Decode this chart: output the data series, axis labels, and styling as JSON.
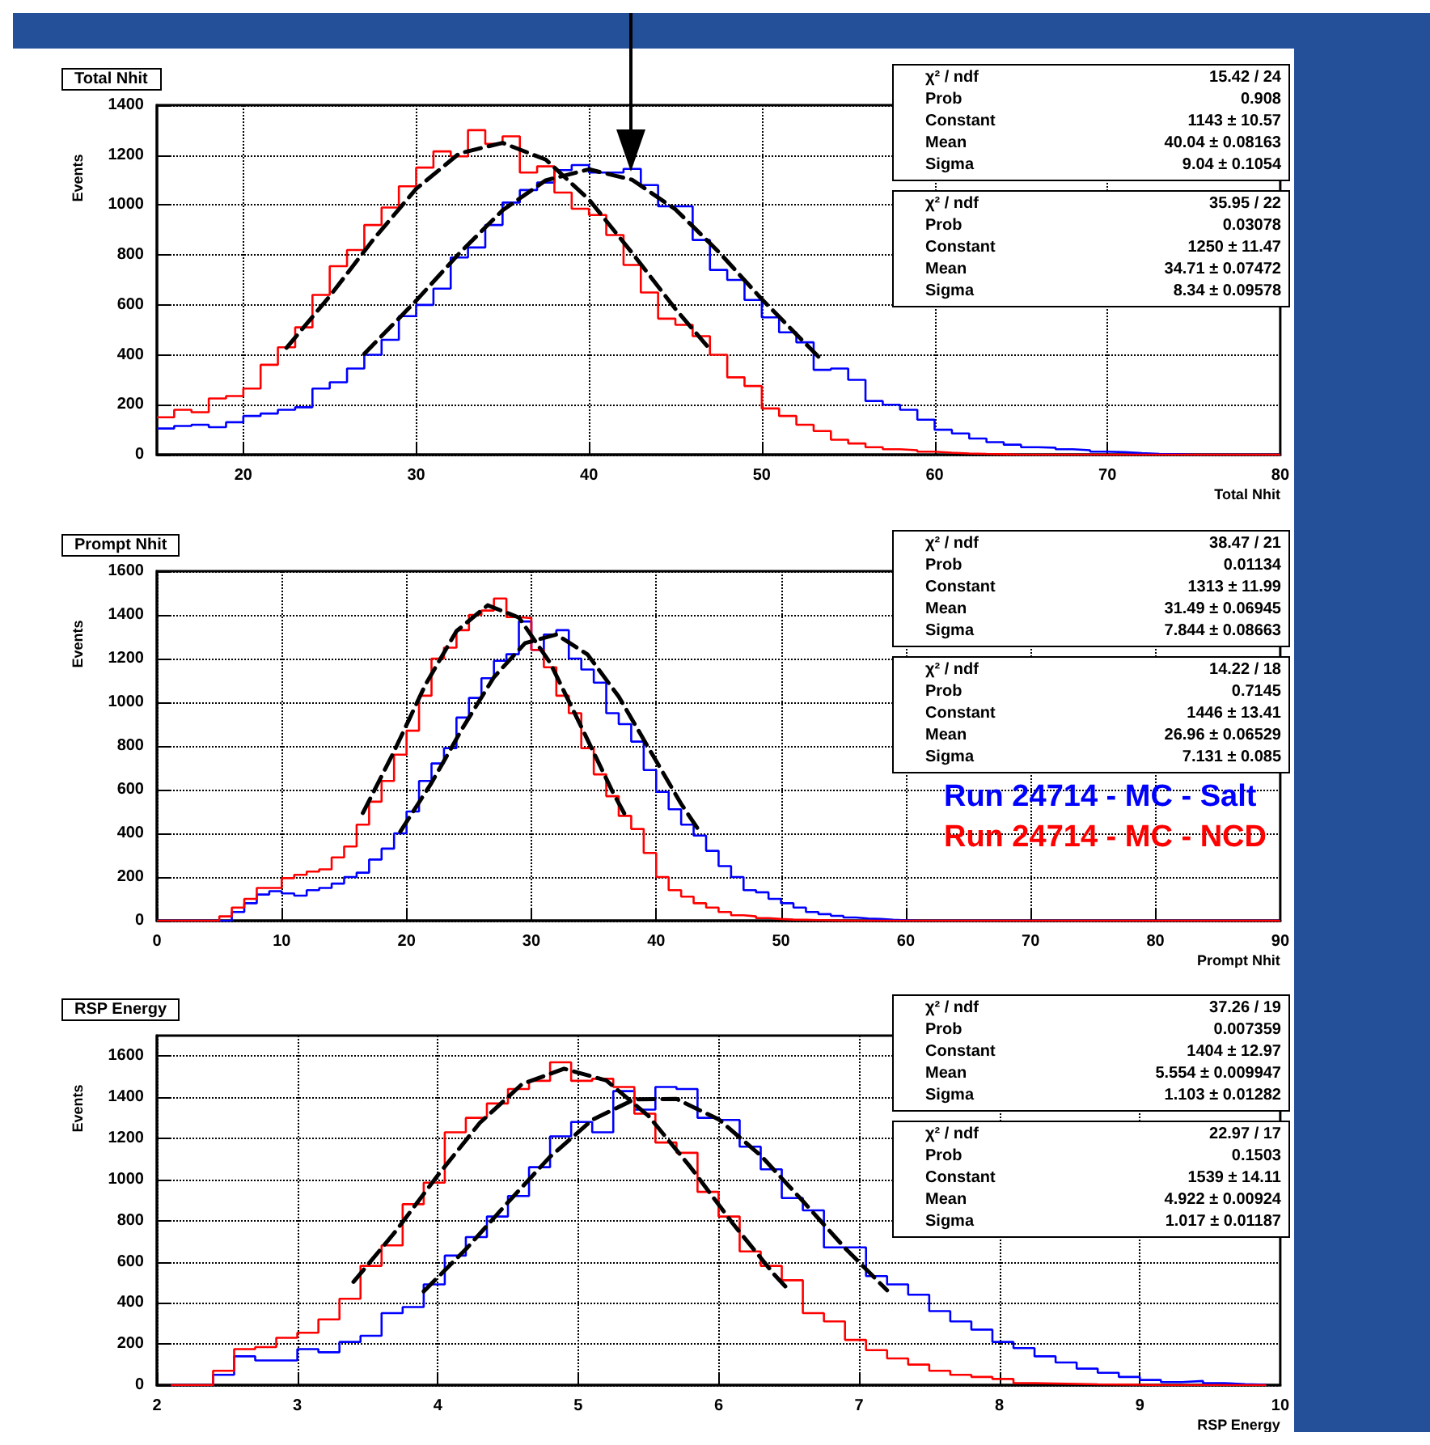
{
  "chart_data": [
    {
      "type": "histogram",
      "title": "Total Nhit",
      "xlabel": "Total Nhit",
      "ylabel": "Events",
      "grid": true,
      "xlim": [
        15,
        80
      ],
      "ylim": [
        0,
        1400
      ],
      "xticks": [
        20,
        30,
        40,
        50,
        60,
        70,
        80
      ],
      "yticks": [
        0,
        200,
        400,
        600,
        800,
        1000,
        1200,
        1400
      ],
      "bins": [
        15,
        16,
        17,
        18,
        19,
        20,
        21,
        22,
        23,
        24,
        25,
        26,
        27,
        28,
        29,
        30,
        31,
        32,
        33,
        34,
        35,
        36,
        37,
        38,
        39,
        40,
        41,
        42,
        43,
        44,
        45,
        46,
        47,
        48,
        49,
        50,
        51,
        52,
        53,
        54,
        55,
        56,
        57,
        58,
        59,
        60,
        61,
        62,
        63,
        64,
        65,
        66,
        67,
        68,
        69,
        70,
        71,
        72,
        73,
        74,
        75,
        76,
        77,
        78,
        79,
        80
      ],
      "series": [
        {
          "color": "#0000ff",
          "values": [
            105,
            115,
            120,
            110,
            130,
            155,
            165,
            180,
            190,
            265,
            290,
            345,
            400,
            460,
            555,
            600,
            665,
            790,
            830,
            920,
            1010,
            1060,
            1090,
            1140,
            1160,
            1130,
            1130,
            1145,
            1080,
            995,
            995,
            860,
            740,
            700,
            620,
            550,
            490,
            450,
            340,
            345,
            300,
            215,
            200,
            180,
            140,
            100,
            85,
            65,
            50,
            40,
            30,
            28,
            22,
            18,
            12,
            10,
            6,
            3,
            2,
            0,
            0,
            0,
            0,
            0,
            0
          ]
        },
        {
          "color": "#ff0000",
          "values": [
            150,
            180,
            170,
            225,
            235,
            265,
            360,
            430,
            510,
            640,
            755,
            820,
            920,
            990,
            1075,
            1150,
            1215,
            1195,
            1300,
            1245,
            1275,
            1130,
            1155,
            1050,
            985,
            960,
            880,
            760,
            650,
            545,
            520,
            475,
            400,
            310,
            275,
            185,
            155,
            120,
            95,
            60,
            45,
            30,
            22,
            18,
            12,
            8,
            5,
            3,
            2,
            0,
            0,
            0,
            0,
            0,
            0,
            0,
            0,
            0,
            0,
            0,
            0,
            0,
            0,
            0,
            0
          ]
        },
        {
          "type": "line",
          "color": "#000000",
          "line_style": "dashed",
          "x": [
            27,
            30,
            32.5,
            35,
            37.5,
            40,
            42.5,
            45,
            47.5,
            50,
            53.5
          ],
          "values": [
            404,
            617,
            807,
            979,
            1099,
            1143,
            1101,
            983,
            813,
            623,
            377
          ]
        },
        {
          "type": "line",
          "color": "#000000",
          "line_style": "dashed",
          "x": [
            22.5,
            25,
            27.5,
            30,
            32.5,
            35,
            37.5,
            40,
            42.5,
            45,
            47
          ],
          "values": [
            428,
            635,
            860,
            1065,
            1207,
            1249,
            1182,
            1022,
            808,
            584,
            422
          ]
        }
      ],
      "annotations": [
        "χ² / ndf\t15.42 / 24\nProb\t0.908\nConstant\t1143 ± 10.57\nMean\t40.04 ± 0.08163\nSigma\t9.04 ± 0.1054",
        "χ² / ndf\t35.95 / 22\nProb\t0.03078\nConstant\t1250 ± 11.47\nMean\t34.71 ± 0.07472\nSigma\t8.34 ± 0.09578"
      ]
    },
    {
      "type": "histogram",
      "title": "Prompt Nhit",
      "xlabel": "Prompt Nhit",
      "ylabel": "Events",
      "grid": true,
      "legend": "right",
      "xlim": [
        0,
        90
      ],
      "ylim": [
        0,
        1600
      ],
      "xticks": [
        0,
        10,
        20,
        30,
        40,
        50,
        60,
        70,
        80,
        90
      ],
      "yticks": [
        0,
        200,
        400,
        600,
        800,
        1000,
        1200,
        1400,
        1600
      ],
      "bins": [
        0,
        1,
        2,
        3,
        4,
        5,
        6,
        7,
        8,
        9,
        10,
        11,
        12,
        13,
        14,
        15,
        16,
        17,
        18,
        19,
        20,
        21,
        22,
        23,
        24,
        25,
        26,
        27,
        28,
        29,
        30,
        31,
        32,
        33,
        34,
        35,
        36,
        37,
        38,
        39,
        40,
        41,
        42,
        43,
        44,
        45,
        46,
        47,
        48,
        49,
        50,
        51,
        52,
        53,
        54,
        55,
        56,
        57,
        58,
        59,
        60,
        61,
        62,
        63,
        64,
        65,
        66,
        67,
        68,
        69,
        70,
        71,
        72,
        73,
        74,
        75,
        76,
        77,
        78,
        79,
        80,
        81,
        82,
        83,
        84,
        85,
        86,
        87,
        88,
        89,
        90
      ],
      "series": [
        {
          "name": "Run 24714 - MC - Salt",
          "color": "#0000ff",
          "values": [
            0,
            0,
            0,
            0,
            0,
            0,
            40,
            80,
            120,
            135,
            125,
            115,
            140,
            150,
            170,
            200,
            220,
            280,
            330,
            400,
            500,
            640,
            720,
            790,
            930,
            1020,
            1110,
            1190,
            1220,
            1370,
            1240,
            1310,
            1330,
            1200,
            1150,
            1090,
            950,
            900,
            820,
            690,
            590,
            510,
            440,
            390,
            320,
            250,
            200,
            140,
            130,
            100,
            80,
            60,
            40,
            30,
            22,
            15,
            10,
            8,
            4,
            2,
            0,
            0,
            0,
            0,
            0,
            0,
            0,
            0,
            0,
            0,
            0,
            0,
            0,
            0,
            0,
            0,
            0,
            0,
            0,
            0,
            0,
            0,
            0,
            0,
            0,
            0,
            0,
            0,
            0,
            0
          ]
        },
        {
          "name": "Run 24714 - MC - NCD",
          "color": "#ff0000",
          "values": [
            0,
            0,
            0,
            0,
            0,
            20,
            60,
            100,
            150,
            150,
            195,
            210,
            225,
            235,
            290,
            340,
            440,
            545,
            640,
            760,
            870,
            1030,
            1200,
            1250,
            1330,
            1400,
            1420,
            1475,
            1390,
            1385,
            1240,
            1160,
            1030,
            950,
            790,
            670,
            570,
            480,
            420,
            310,
            200,
            140,
            110,
            80,
            60,
            40,
            25,
            20,
            12,
            8,
            5,
            4,
            3,
            2,
            1,
            0,
            0,
            0,
            0,
            0,
            0,
            0,
            0,
            0,
            0,
            0,
            0,
            0,
            0,
            0,
            0,
            0,
            0,
            0,
            0,
            0,
            0,
            0,
            0,
            0,
            0,
            0,
            0,
            0,
            0,
            0,
            0,
            0,
            0,
            0
          ]
        },
        {
          "type": "line",
          "color": "#000000",
          "line_style": "dashed",
          "x": [
            19.5,
            22,
            24.5,
            27,
            29.5,
            32,
            34.5,
            37,
            39.5,
            42,
            43.5
          ],
          "values": [
            408,
            631,
            883,
            1115,
            1271,
            1310,
            1219,
            1026,
            780,
            535,
            407
          ]
        },
        {
          "type": "line",
          "color": "#000000",
          "line_style": "dashed",
          "x": [
            16.5,
            19,
            21.5,
            24,
            26.5,
            29,
            31.5,
            34,
            36.5,
            37.5
          ],
          "values": [
            493,
            775,
            1079,
            1326,
            1444,
            1388,
            1181,
            888,
            591,
            485
          ]
        }
      ],
      "annotations": [
        "χ² / ndf\t38.47 / 21\nProb\t0.01134\nConstant\t1313 ± 11.99\nMean\t31.49 ± 0.06945\nSigma\t7.844 ± 0.08663",
        "χ² / ndf\t14.22 / 18\nProb\t0.7145\nConstant\t1446 ± 13.41\nMean\t26.96 ± 0.06529\nSigma\t7.131 ± 0.085"
      ]
    },
    {
      "type": "histogram",
      "title": "RSP Energy",
      "xlabel": "RSP Energy",
      "ylabel": "Events",
      "grid": true,
      "xlim": [
        2,
        10
      ],
      "ylim": [
        0,
        1700
      ],
      "xticks": [
        2,
        3,
        4,
        5,
        6,
        7,
        8,
        9,
        10
      ],
      "yticks": [
        0,
        200,
        400,
        600,
        800,
        1000,
        1200,
        1400,
        1600
      ],
      "bins": [
        2.1,
        2.25,
        2.4,
        2.55,
        2.7,
        2.85,
        3,
        3.15,
        3.3,
        3.45,
        3.6,
        3.75,
        3.9,
        4.05,
        4.2,
        4.35,
        4.5,
        4.65,
        4.8,
        4.95,
        5.1,
        5.25,
        5.4,
        5.55,
        5.7,
        5.85,
        6,
        6.15,
        6.3,
        6.45,
        6.6,
        6.75,
        6.9,
        7.05,
        7.2,
        7.35,
        7.5,
        7.65,
        7.8,
        7.95,
        8.1,
        8.25,
        8.4,
        8.55,
        8.7,
        8.85,
        9,
        9.15,
        9.3,
        9.45,
        9.6,
        9.75,
        9.9
      ],
      "series": [
        {
          "color": "#0000ff",
          "values": [
            0,
            0,
            50,
            140,
            120,
            120,
            175,
            160,
            210,
            240,
            350,
            380,
            490,
            630,
            720,
            820,
            920,
            1060,
            1210,
            1280,
            1230,
            1430,
            1340,
            1450,
            1440,
            1300,
            1290,
            1160,
            1050,
            910,
            850,
            670,
            670,
            530,
            490,
            440,
            360,
            310,
            270,
            210,
            180,
            140,
            110,
            80,
            60,
            40,
            25,
            15,
            20,
            10,
            5,
            2
          ]
        },
        {
          "color": "#ff0000",
          "values": [
            0,
            0,
            70,
            175,
            185,
            230,
            255,
            320,
            420,
            580,
            680,
            880,
            985,
            1230,
            1300,
            1370,
            1440,
            1480,
            1570,
            1480,
            1490,
            1450,
            1320,
            1180,
            1130,
            940,
            820,
            650,
            580,
            510,
            350,
            310,
            220,
            170,
            130,
            100,
            70,
            50,
            40,
            30,
            10,
            8,
            6,
            4,
            3,
            2,
            0,
            0,
            0,
            0,
            0,
            0
          ]
        },
        {
          "type": "line",
          "color": "#000000",
          "line_style": "dashed",
          "x": [
            3.9,
            4.2,
            4.5,
            4.8,
            5.1,
            5.4,
            5.7,
            6,
            6.3,
            6.6,
            6.9,
            7.2
          ],
          "values": [
            456,
            661,
            889,
            1111,
            1290,
            1390,
            1392,
            1293,
            1117,
            895,
            667,
            461
          ]
        },
        {
          "type": "line",
          "color": "#000000",
          "line_style": "dashed",
          "x": [
            3.4,
            3.7,
            4,
            4.3,
            4.6,
            4.9,
            5.2,
            5.5,
            5.8,
            6.1,
            6.4,
            6.5
          ],
          "values": [
            502,
            748,
            1020,
            1276,
            1464,
            1539,
            1482,
            1310,
            1060,
            787,
            535,
            462
          ]
        }
      ],
      "annotations": [
        "χ² / ndf\t37.26 / 19\nProb\t0.007359\nConstant\t1404 ± 12.97\nMean\t5.554 ± 0.009947\nSigma\t1.103 ± 0.01282",
        "χ² / ndf\t22.97 / 17\nProb\t0.1503\nConstant\t1539 ± 14.11\nMean\t4.922 ± 0.00924\nSigma\t1.017 ± 0.01187"
      ]
    }
  ]
}
